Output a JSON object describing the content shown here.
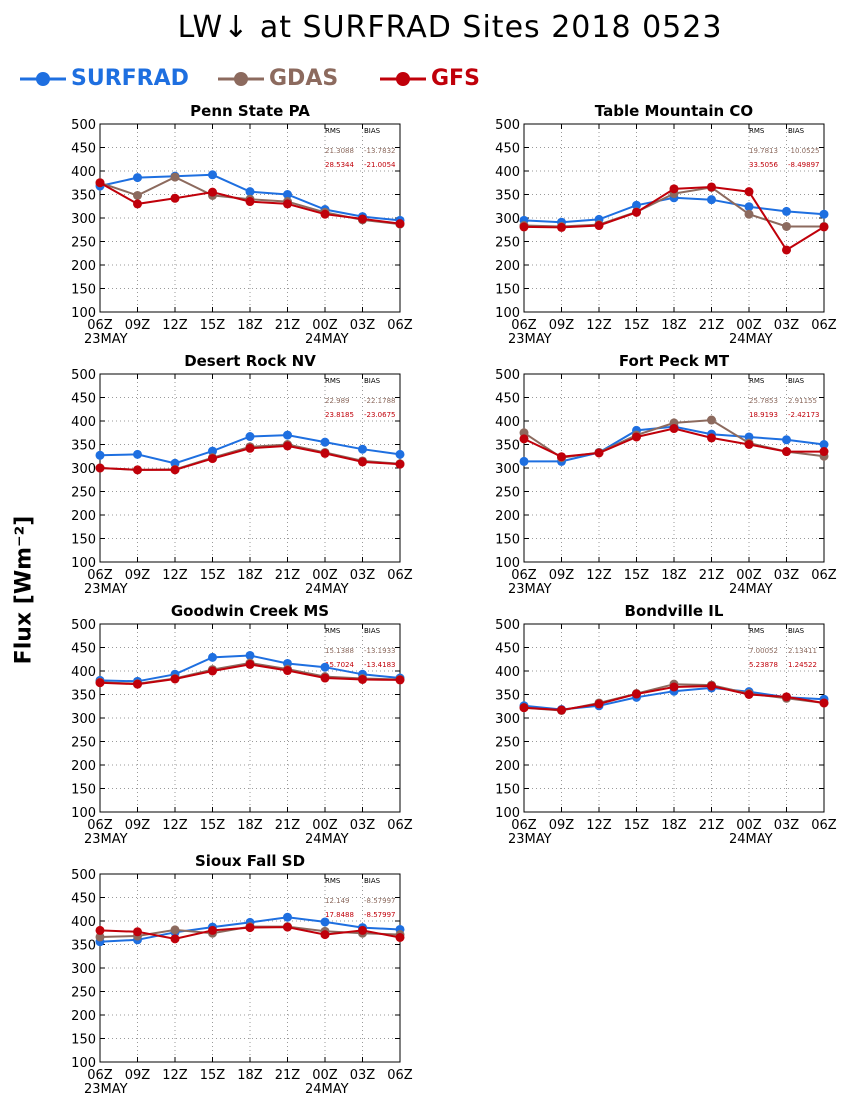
{
  "title": "LW↓ at SURFRAD Sites   2018 0523",
  "ylabel": "Flux [Wm⁻²]",
  "legend": [
    {
      "name": "SURFRAD",
      "color": "#1e6fe0"
    },
    {
      "name": "GDAS",
      "color": "#8c6a5e"
    },
    {
      "name": "GFS",
      "color": "#c0000a"
    }
  ],
  "stats_headers": {
    "rms": "RMS",
    "bias": "BIAS"
  },
  "chart_data": [
    {
      "type": "line",
      "title": "Penn State PA",
      "categories": [
        "06Z",
        "09Z",
        "12Z",
        "15Z",
        "18Z",
        "21Z",
        "00Z",
        "03Z",
        "06Z"
      ],
      "date_labels": [
        "23MAY",
        "24MAY"
      ],
      "ylim": [
        100,
        500
      ],
      "yticks": [
        100,
        150,
        200,
        250,
        300,
        350,
        400,
        450,
        500
      ],
      "grid": true,
      "series": [
        {
          "name": "SURFRAD",
          "values": [
            368,
            386,
            389,
            392,
            356,
            350,
            318,
            303,
            295
          ]
        },
        {
          "name": "GDAS",
          "values": [
            375,
            348,
            387,
            348,
            340,
            335,
            312,
            296,
            287
          ]
        },
        {
          "name": "GFS",
          "values": [
            375,
            330,
            342,
            355,
            335,
            330,
            308,
            298,
            288
          ]
        }
      ],
      "stats": {
        "gdas_rms": "21.3088",
        "gdas_bias": "-13.7832",
        "gfs_rms": "28.5344",
        "gfs_bias": "-21.0054"
      }
    },
    {
      "type": "line",
      "title": "Table Mountain CO",
      "categories": [
        "06Z",
        "09Z",
        "12Z",
        "15Z",
        "18Z",
        "21Z",
        "00Z",
        "03Z",
        "06Z"
      ],
      "date_labels": [
        "23MAY",
        "24MAY"
      ],
      "ylim": [
        100,
        500
      ],
      "yticks": [
        100,
        150,
        200,
        250,
        300,
        350,
        400,
        450,
        500
      ],
      "grid": true,
      "series": [
        {
          "name": "SURFRAD",
          "values": [
            295,
            291,
            297,
            327,
            343,
            339,
            324,
            314,
            308
          ]
        },
        {
          "name": "GDAS",
          "values": [
            284,
            282,
            286,
            313,
            352,
            365,
            308,
            282,
            282
          ]
        },
        {
          "name": "GFS",
          "values": [
            281,
            280,
            284,
            312,
            362,
            366,
            356,
            232,
            281
          ]
        }
      ],
      "stats": {
        "gdas_rms": "19.7813",
        "gdas_bias": "-10.0525",
        "gfs_rms": "33.5056",
        "gfs_bias": "-8.49897"
      }
    },
    {
      "type": "line",
      "title": "Desert Rock NV",
      "categories": [
        "06Z",
        "09Z",
        "12Z",
        "15Z",
        "18Z",
        "21Z",
        "00Z",
        "03Z",
        "06Z"
      ],
      "date_labels": [
        "23MAY",
        "24MAY"
      ],
      "ylim": [
        100,
        500
      ],
      "yticks": [
        100,
        150,
        200,
        250,
        300,
        350,
        400,
        450,
        500
      ],
      "grid": true,
      "series": [
        {
          "name": "SURFRAD",
          "values": [
            327,
            329,
            310,
            336,
            367,
            370,
            355,
            340,
            329
          ]
        },
        {
          "name": "GDAS",
          "values": [
            300,
            296,
            297,
            322,
            345,
            350,
            333,
            315,
            309
          ]
        },
        {
          "name": "GFS",
          "values": [
            300,
            296,
            296,
            320,
            342,
            347,
            331,
            313,
            308
          ]
        }
      ],
      "stats": {
        "gdas_rms": "22.989",
        "gdas_bias": "-22.1788",
        "gfs_rms": "23.8185",
        "gfs_bias": "-23.0675"
      }
    },
    {
      "type": "line",
      "title": "Fort Peck MT",
      "categories": [
        "06Z",
        "09Z",
        "12Z",
        "15Z",
        "18Z",
        "21Z",
        "00Z",
        "03Z",
        "06Z"
      ],
      "date_labels": [
        "23MAY",
        "24MAY"
      ],
      "ylim": [
        100,
        500
      ],
      "yticks": [
        100,
        150,
        200,
        250,
        300,
        350,
        400,
        450,
        500
      ],
      "grid": true,
      "series": [
        {
          "name": "SURFRAD",
          "values": [
            314,
            314,
            333,
            380,
            388,
            372,
            366,
            360,
            350
          ]
        },
        {
          "name": "GDAS",
          "values": [
            375,
            322,
            333,
            370,
            396,
            402,
            353,
            335,
            325
          ]
        },
        {
          "name": "GFS",
          "values": [
            362,
            324,
            332,
            366,
            384,
            364,
            350,
            335,
            335
          ]
        }
      ],
      "stats": {
        "gdas_rms": "25.7853",
        "gdas_bias": "2.91155",
        "gfs_rms": "18.9193",
        "gfs_bias": "-2.42173"
      }
    },
    {
      "type": "line",
      "title": "Goodwin Creek MS",
      "categories": [
        "06Z",
        "09Z",
        "12Z",
        "15Z",
        "18Z",
        "21Z",
        "00Z",
        "03Z",
        "06Z"
      ],
      "date_labels": [
        "23MAY",
        "24MAY"
      ],
      "ylim": [
        100,
        500
      ],
      "yticks": [
        100,
        150,
        200,
        250,
        300,
        350,
        400,
        450,
        500
      ],
      "grid": true,
      "series": [
        {
          "name": "SURFRAD",
          "values": [
            380,
            378,
            393,
            429,
            433,
            416,
            408,
            393,
            385
          ]
        },
        {
          "name": "GDAS",
          "values": [
            376,
            373,
            384,
            403,
            417,
            404,
            388,
            384,
            382
          ]
        },
        {
          "name": "GFS",
          "values": [
            375,
            372,
            383,
            400,
            414,
            401,
            385,
            382,
            381
          ]
        }
      ],
      "stats": {
        "gdas_rms": "15.1388",
        "gdas_bias": "-13.1933",
        "gfs_rms": "15.7024",
        "gfs_bias": "-13.4183"
      }
    },
    {
      "type": "line",
      "title": "Bondville IL",
      "categories": [
        "06Z",
        "09Z",
        "12Z",
        "15Z",
        "18Z",
        "21Z",
        "00Z",
        "03Z",
        "06Z"
      ],
      "date_labels": [
        "23MAY",
        "24MAY"
      ],
      "ylim": [
        100,
        500
      ],
      "yticks": [
        100,
        150,
        200,
        250,
        300,
        350,
        400,
        450,
        500
      ],
      "grid": true,
      "series": [
        {
          "name": "SURFRAD",
          "values": [
            326,
            318,
            326,
            344,
            357,
            364,
            356,
            344,
            340
          ]
        },
        {
          "name": "GDAS",
          "values": [
            322,
            316,
            332,
            352,
            372,
            370,
            352,
            342,
            332
          ]
        },
        {
          "name": "GFS",
          "values": [
            322,
            317,
            330,
            351,
            366,
            368,
            350,
            345,
            332
          ]
        }
      ],
      "stats": {
        "gdas_rms": "7.00052",
        "gdas_bias": "2.13411",
        "gfs_rms": "5.23878",
        "gfs_bias": "1.24522"
      }
    },
    {
      "type": "line",
      "title": "Sioux Fall SD",
      "categories": [
        "06Z",
        "09Z",
        "12Z",
        "15Z",
        "18Z",
        "21Z",
        "00Z",
        "03Z",
        "06Z"
      ],
      "date_labels": [
        "23MAY",
        "24MAY"
      ],
      "ylim": [
        100,
        500
      ],
      "yticks": [
        100,
        150,
        200,
        250,
        300,
        350,
        400,
        450,
        500
      ],
      "grid": true,
      "series": [
        {
          "name": "SURFRAD",
          "values": [
            356,
            360,
            376,
            387,
            397,
            408,
            398,
            386,
            382
          ]
        },
        {
          "name": "GDAS",
          "values": [
            366,
            368,
            381,
            374,
            388,
            388,
            378,
            374,
            371
          ]
        },
        {
          "name": "GFS",
          "values": [
            380,
            377,
            362,
            380,
            386,
            387,
            371,
            380,
            365
          ]
        }
      ],
      "stats": {
        "gdas_rms": "12.149",
        "gdas_bias": "-8.57997",
        "gfs_rms": "17.8488",
        "gfs_bias": "-8.57997"
      }
    }
  ]
}
